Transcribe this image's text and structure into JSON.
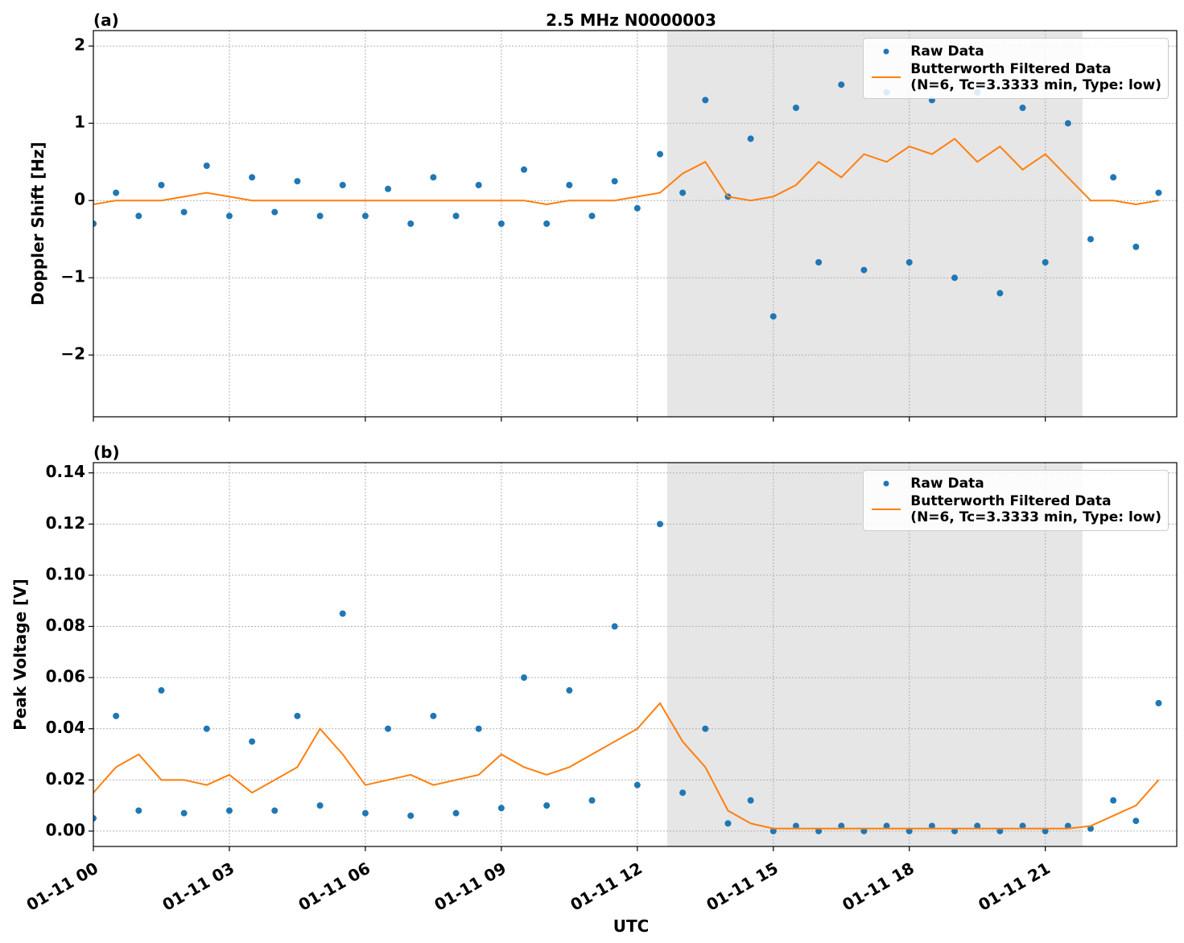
{
  "chart_data": [
    {
      "type": "line",
      "title": "2.5 MHz N0000003",
      "panel_label": "(a)",
      "ylabel": "Doppler Shift [Hz]",
      "x": [
        0,
        0.5,
        1,
        1.5,
        2,
        2.5,
        3,
        3.5,
        4,
        4.5,
        5,
        5.5,
        6,
        6.5,
        7,
        7.5,
        8,
        8.5,
        9,
        9.5,
        10,
        10.5,
        11,
        11.5,
        12,
        12.5,
        13,
        13.5,
        14,
        14.5,
        15,
        15.5,
        16,
        16.5,
        17,
        17.5,
        18,
        18.5,
        19,
        19.5,
        20,
        20.5,
        21,
        21.5,
        22,
        22.5,
        23,
        23.5
      ],
      "xlim": [
        0,
        23.9
      ],
      "xticks": [
        0,
        3,
        6,
        9,
        12,
        15,
        18,
        21
      ],
      "ylim": [
        -2.8,
        2.2
      ],
      "yticks": [
        {
          "value": -2,
          "label": "−2"
        },
        {
          "value": -1,
          "label": "−1"
        },
        0,
        1,
        2
      ],
      "grid": true,
      "shaded_span": [
        12.66,
        21.82
      ],
      "legend": "upper right",
      "series": [
        {
          "name": "Raw Data",
          "type": "scatter",
          "color": "#1f77b4",
          "values": [
            -0.3,
            0.1,
            -0.2,
            0.2,
            -0.15,
            0.45,
            -0.2,
            0.3,
            -0.15,
            0.25,
            -0.2,
            0.2,
            -0.2,
            0.15,
            -0.3,
            0.3,
            -0.2,
            0.2,
            -0.3,
            0.4,
            -0.3,
            0.2,
            -0.2,
            0.25,
            -0.1,
            0.6,
            0.1,
            1.3,
            0.05,
            0.8,
            -1.5,
            1.2,
            -0.8,
            1.5,
            -0.9,
            1.4,
            -0.8,
            1.3,
            -1.0,
            1.4,
            -1.2,
            1.2,
            -0.8,
            1.0,
            -0.5,
            0.3,
            -0.6,
            0.1
          ]
        },
        {
          "name": "Butterworth Filtered Data\n(N=6, Tc=3.3333 min, Type: low)",
          "type": "line",
          "color": "#ff7f0e",
          "values": [
            -0.05,
            0,
            0,
            0,
            0.05,
            0.1,
            0.05,
            0,
            0,
            0,
            0,
            0,
            0,
            0,
            0,
            0,
            0,
            0,
            0,
            0,
            -0.05,
            0,
            0,
            0,
            0.05,
            0.1,
            0.35,
            0.5,
            0.05,
            0,
            0.05,
            0.2,
            0.5,
            0.3,
            0.6,
            0.5,
            0.7,
            0.6,
            0.8,
            0.5,
            0.7,
            0.4,
            0.6,
            0.3,
            0,
            0,
            -0.05,
            0
          ]
        }
      ]
    },
    {
      "type": "line",
      "panel_label": "(b)",
      "ylabel": "Peak Voltage [V]",
      "xlabel": "UTC",
      "x": [
        0,
        0.5,
        1,
        1.5,
        2,
        2.5,
        3,
        3.5,
        4,
        4.5,
        5,
        5.5,
        6,
        6.5,
        7,
        7.5,
        8,
        8.5,
        9,
        9.5,
        10,
        10.5,
        11,
        11.5,
        12,
        12.5,
        13,
        13.5,
        14,
        14.5,
        15,
        15.5,
        16,
        16.5,
        17,
        17.5,
        18,
        18.5,
        19,
        19.5,
        20,
        20.5,
        21,
        21.5,
        22,
        22.5,
        23,
        23.5
      ],
      "xlim": [
        0,
        23.9
      ],
      "xticks": [
        {
          "value": 0,
          "label": "01-11 00"
        },
        {
          "value": 3,
          "label": "01-11 03"
        },
        {
          "value": 6,
          "label": "01-11 06"
        },
        {
          "value": 9,
          "label": "01-11 09"
        },
        {
          "value": 12,
          "label": "01-11 12"
        },
        {
          "value": 15,
          "label": "01-11 15"
        },
        {
          "value": 18,
          "label": "01-11 18"
        },
        {
          "value": 21,
          "label": "01-11 21"
        }
      ],
      "ylim": [
        -0.006,
        0.144
      ],
      "yticks": [
        {
          "value": 0,
          "label": "0.00"
        },
        {
          "value": 0.02,
          "label": "0.02"
        },
        {
          "value": 0.04,
          "label": "0.04"
        },
        {
          "value": 0.06,
          "label": "0.06"
        },
        {
          "value": 0.08,
          "label": "0.08"
        },
        {
          "value": 0.1,
          "label": "0.10"
        },
        {
          "value": 0.12,
          "label": "0.12"
        },
        {
          "value": 0.14,
          "label": "0.14"
        }
      ],
      "grid": true,
      "shaded_span": [
        12.66,
        21.82
      ],
      "legend": "upper right",
      "series": [
        {
          "name": "Raw Data",
          "type": "scatter",
          "color": "#1f77b4",
          "values": [
            0.005,
            0.045,
            0.008,
            0.055,
            0.007,
            0.04,
            0.008,
            0.035,
            0.008,
            0.045,
            0.01,
            0.085,
            0.007,
            0.04,
            0.006,
            0.045,
            0.007,
            0.04,
            0.009,
            0.06,
            0.01,
            0.055,
            0.012,
            0.08,
            0.018,
            0.12,
            0.015,
            0.04,
            0.003,
            0.012,
            0,
            0.002,
            0,
            0.002,
            0,
            0.002,
            0,
            0.002,
            0,
            0.002,
            0,
            0.002,
            0,
            0.002,
            0.001,
            0.012,
            0.004,
            0.05
          ]
        },
        {
          "name": "Butterworth Filtered Data\n(N=6, Tc=3.3333 min, Type: low)",
          "type": "line",
          "color": "#ff7f0e",
          "values": [
            0.015,
            0.025,
            0.03,
            0.02,
            0.02,
            0.018,
            0.022,
            0.015,
            0.02,
            0.025,
            0.04,
            0.03,
            0.018,
            0.02,
            0.022,
            0.018,
            0.02,
            0.022,
            0.03,
            0.025,
            0.022,
            0.025,
            0.03,
            0.035,
            0.04,
            0.05,
            0.035,
            0.025,
            0.008,
            0.003,
            0.001,
            0.001,
            0.001,
            0.001,
            0.001,
            0.001,
            0.001,
            0.001,
            0.001,
            0.001,
            0.001,
            0.001,
            0.001,
            0.001,
            0.002,
            0.006,
            0.01,
            0.02
          ]
        }
      ]
    }
  ]
}
